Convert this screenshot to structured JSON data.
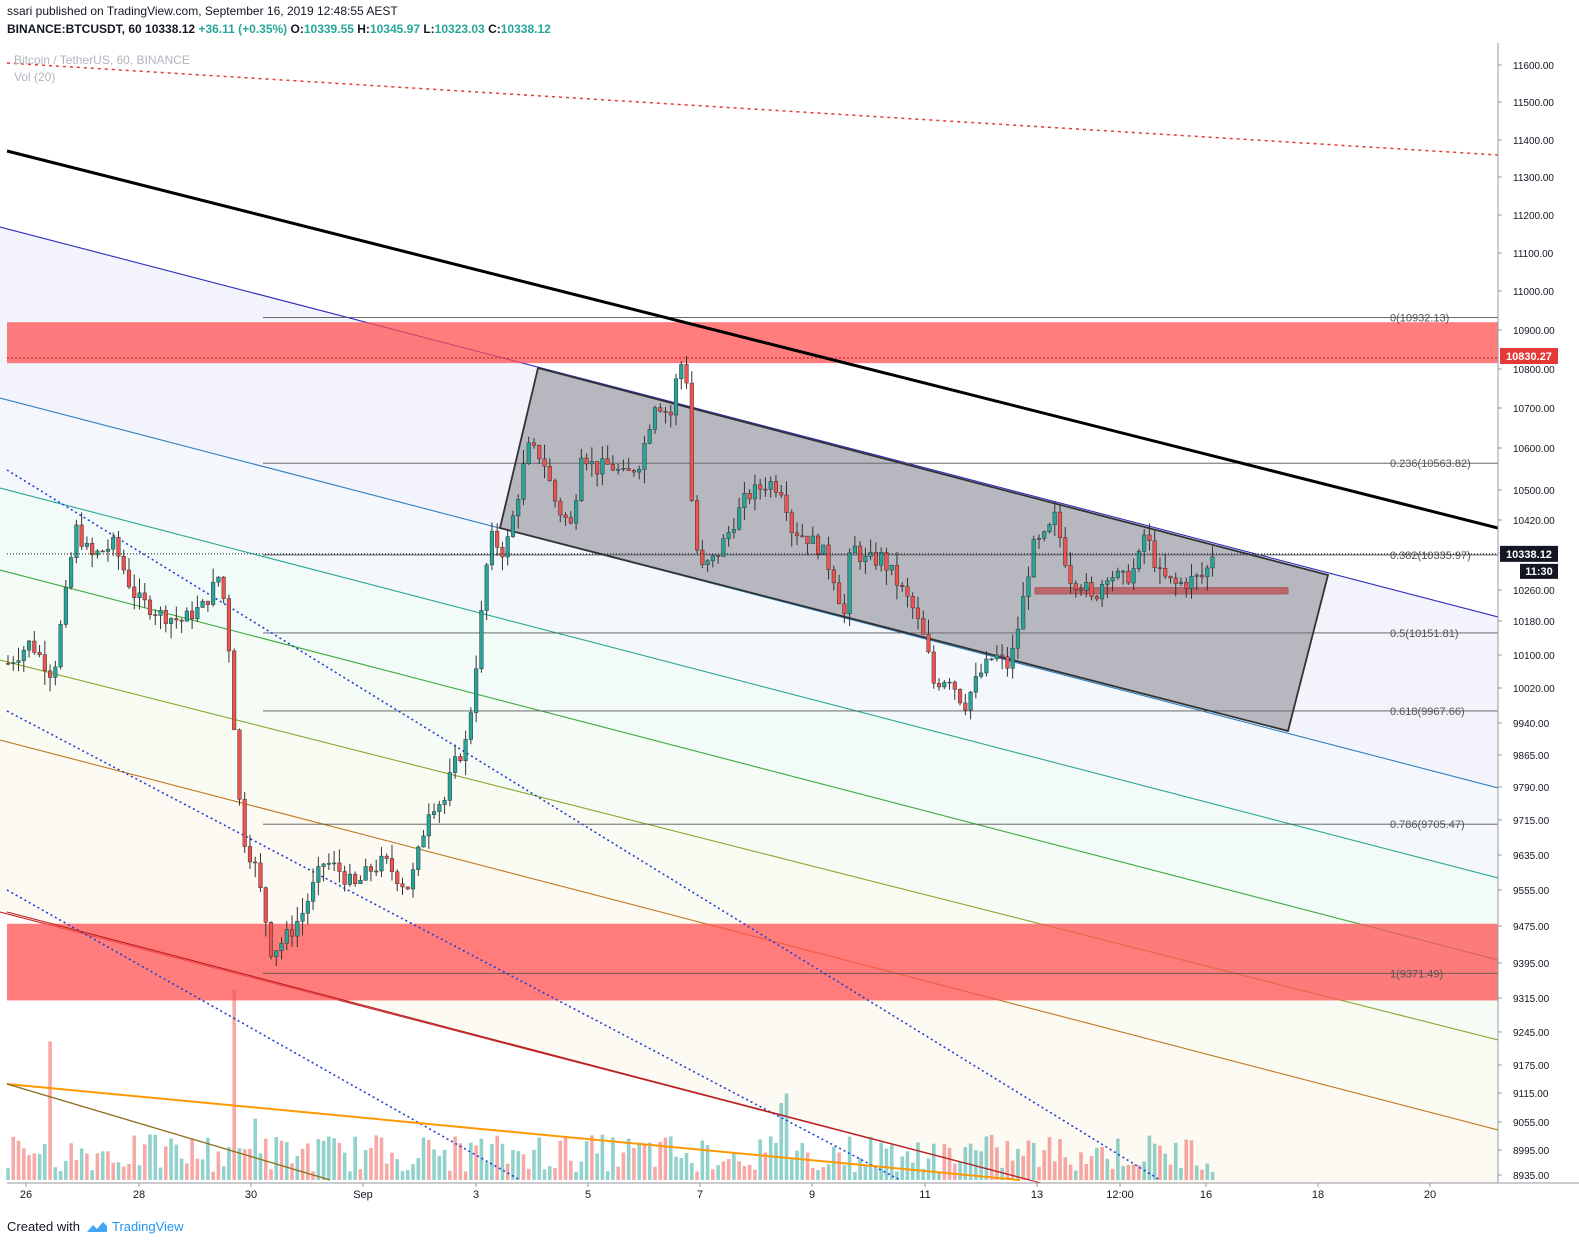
{
  "header": {
    "publisher": "ssari published on TradingView.com, September 16, 2019 12:48:55 AEST",
    "symbol": "BINANCE:BTCUSDT, 60",
    "last": "10338.12",
    "change": "+36.11 (+0.35%)",
    "o_label": "O:",
    "o": "10339.55",
    "h_label": "H:",
    "h": "10345.97",
    "l_label": "L:",
    "l": "10323.03",
    "c_label": "C:",
    "c": "10338.12",
    "legend_symbol": "Bitcoin / TetherUS, 60, BINANCE",
    "legend_vol": "Vol (20)"
  },
  "footer": {
    "created_with": "Created with",
    "brand": "TradingView"
  },
  "colors": {
    "bull": "#26a69a",
    "bear": "#ef5350",
    "zone": "#ff5252",
    "channel_box": "#8a8a8f",
    "trend": "#000000",
    "dotted_red": "#e53935",
    "dotted_blue": "#1e3fd8",
    "price_badge": "#131722",
    "level_badge": "#e53935"
  },
  "chart_data": {
    "type": "candlestick",
    "title": "Bitcoin / TetherUS, 60, BINANCE",
    "interval": "60",
    "y_axis": {
      "ticks": [
        11600,
        11500,
        11400,
        11300,
        11200,
        11100,
        11000,
        10900,
        10800,
        10700,
        10600,
        10500,
        10420,
        10340,
        10260,
        10180,
        10100,
        10020,
        9940,
        9865,
        9790,
        9715,
        9635,
        9555,
        9475,
        9395,
        9315,
        9245,
        9175,
        9115,
        9055,
        8995,
        8935
      ],
      "tick_labels": [
        "11600.00",
        "11500.00",
        "11400.00",
        "11300.00",
        "11200.00",
        "11100.00",
        "11000.00",
        "10900.00",
        "10800.00",
        "10700.00",
        "10600.00",
        "10500.00",
        "10420.00",
        "10340.00",
        "10260.00",
        "10180.00",
        "10100.00",
        "10020.00",
        "9940.00",
        "9865.00",
        "9790.00",
        "9715.00",
        "9635.00",
        "9555.00",
        "9475.00",
        "9395.00",
        "9315.00",
        "9245.00",
        "9175.00",
        "9115.00",
        "9055.00",
        "8995.00",
        "8935.00"
      ]
    },
    "x_axis": {
      "tick_labels": [
        "26",
        "28",
        "30",
        "Sep",
        "3",
        "5",
        "7",
        "9",
        "11",
        "13",
        "12:00",
        "16",
        "18",
        "20"
      ]
    },
    "last_price": 10338.12,
    "last_price_label": "10338.12",
    "countdown_label": "11:30",
    "resistance_label": "10830.27",
    "fib_levels": [
      {
        "ratio": 0,
        "price": 10932.13,
        "label": "0(10932.13)"
      },
      {
        "ratio": 0.236,
        "price": 10563.82,
        "label": "0.236(10563.82)"
      },
      {
        "ratio": 0.382,
        "price": 10335.97,
        "label": "0.382(10335.97)"
      },
      {
        "ratio": 0.5,
        "price": 10151.81,
        "label": "0.5(10151.81)"
      },
      {
        "ratio": 0.618,
        "price": 9967.66,
        "label": "0.618(9967.66)"
      },
      {
        "ratio": 0.786,
        "price": 9705.47,
        "label": "0.786(9705.47)"
      },
      {
        "ratio": 1,
        "price": 9371.49,
        "label": "1(9371.49)"
      }
    ],
    "zones": [
      {
        "name": "resistance",
        "top": 10920,
        "bottom": 10815
      },
      {
        "name": "support",
        "top": 9480,
        "bottom": 9310
      },
      {
        "name": "small",
        "top": 10265,
        "bottom": 10250
      }
    ],
    "path_waypoints": [
      [
        0,
        10080
      ],
      [
        3,
        10130
      ],
      [
        6,
        10050
      ],
      [
        9,
        10400
      ],
      [
        11,
        10330
      ],
      [
        14,
        10360
      ],
      [
        17,
        10240
      ],
      [
        20,
        10200
      ],
      [
        23,
        10180
      ],
      [
        26,
        10220
      ],
      [
        28,
        10290
      ],
      [
        29,
        10210
      ],
      [
        31,
        9690
      ],
      [
        33,
        9600
      ],
      [
        35,
        9420
      ],
      [
        37,
        9450
      ],
      [
        39,
        9500
      ],
      [
        42,
        9620
      ],
      [
        44,
        9600
      ],
      [
        46,
        9560
      ],
      [
        48,
        9600
      ],
      [
        50,
        9620
      ],
      [
        53,
        9560
      ],
      [
        54,
        9600
      ],
      [
        56,
        9750
      ],
      [
        58,
        9760
      ],
      [
        59,
        9830
      ],
      [
        61,
        9900
      ],
      [
        62,
        10050
      ],
      [
        64,
        10380
      ],
      [
        66,
        10340
      ],
      [
        67,
        10420
      ],
      [
        69,
        10600
      ],
      [
        71,
        10580
      ],
      [
        73,
        10450
      ],
      [
        75,
        10400
      ],
      [
        76,
        10600
      ],
      [
        78,
        10550
      ],
      [
        80,
        10560
      ],
      [
        82,
        10530
      ],
      [
        84,
        10570
      ],
      [
        86,
        10720
      ],
      [
        88,
        10680
      ],
      [
        89,
        10800
      ],
      [
        90,
        10830
      ],
      [
        91,
        10400
      ],
      [
        92,
        10300
      ],
      [
        94,
        10330
      ],
      [
        96,
        10400
      ],
      [
        98,
        10480
      ],
      [
        101,
        10520
      ],
      [
        103,
        10500
      ],
      [
        104,
        10400
      ],
      [
        106,
        10380
      ],
      [
        108,
        10350
      ],
      [
        110,
        10280
      ],
      [
        111,
        10180
      ],
      [
        112,
        10360
      ],
      [
        114,
        10320
      ],
      [
        116,
        10330
      ],
      [
        118,
        10280
      ],
      [
        120,
        10220
      ],
      [
        122,
        10120
      ],
      [
        123,
        10030
      ],
      [
        125,
        10050
      ],
      [
        127,
        9980
      ],
      [
        129,
        10050
      ],
      [
        131,
        10100
      ],
      [
        133,
        10070
      ],
      [
        134,
        10150
      ],
      [
        136,
        10350
      ],
      [
        138,
        10380
      ],
      [
        139,
        10430
      ],
      [
        141,
        10290
      ],
      [
        143,
        10270
      ],
      [
        144,
        10230
      ],
      [
        146,
        10300
      ],
      [
        148,
        10280
      ],
      [
        150,
        10310
      ],
      [
        151,
        10390
      ],
      [
        153,
        10290
      ],
      [
        155,
        10270
      ],
      [
        157,
        10280
      ],
      [
        159,
        10290
      ],
      [
        160,
        10340
      ]
    ],
    "volume_spikes": [
      [
        6,
        140
      ],
      [
        30,
        195
      ],
      [
        33,
        95
      ],
      [
        69,
        120
      ],
      [
        90,
        155
      ],
      [
        103,
        110
      ],
      [
        120,
        110
      ],
      [
        123,
        110
      ]
    ]
  }
}
